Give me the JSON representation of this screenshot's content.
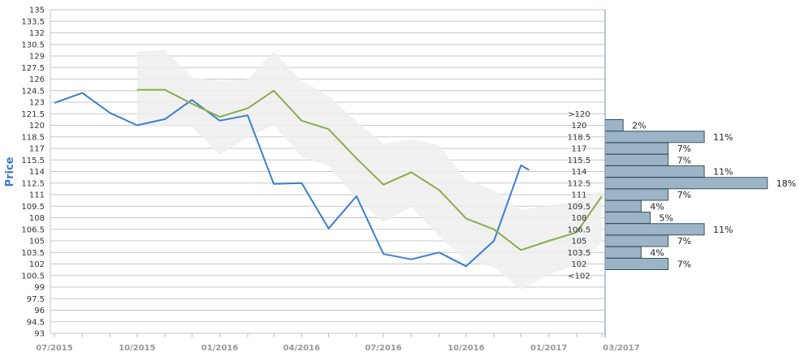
{
  "chart_data": {
    "type": "line",
    "title": "",
    "xlabel": "",
    "ylabel": "Price",
    "ylim": [
      93,
      135
    ],
    "y_ticks": [
      "135",
      "133.5",
      "132",
      "130.5",
      "129",
      "127.5",
      "126",
      "124.5",
      "123",
      "121.5",
      "120",
      "118.5",
      "117",
      "115.5",
      "114",
      "112.5",
      "111",
      "109.5",
      "108",
      "106.5",
      "105",
      "103.5",
      "102",
      "100.5",
      "99",
      "97.5",
      "96",
      "94.5",
      "93"
    ],
    "x_ticks": [
      "07/2015",
      "10/2015",
      "01/2016",
      "04/2016",
      "07/2016",
      "10/2016",
      "01/2017",
      "03/2017"
    ],
    "grid": true,
    "legend": "none",
    "colors": {
      "actual": "#3a7fd1",
      "mean": "#8aad4a",
      "band": "#eeeeee",
      "histogram": "#9bb5c6"
    },
    "series": [
      {
        "values": [
          [
            "2015-07-01",
            122.9
          ],
          [
            "2015-08-01",
            124.2
          ],
          [
            "2015-09-01",
            121.6
          ],
          [
            "2015-10-01",
            120.0
          ],
          [
            "2015-11-01",
            120.8
          ],
          [
            "2015-12-01",
            123.3
          ],
          [
            "2016-01-01",
            120.6
          ],
          [
            "2016-02-01",
            121.3
          ],
          [
            "2016-03-01",
            112.4
          ],
          [
            "2016-04-01",
            112.5
          ],
          [
            "2016-05-01",
            106.6
          ],
          [
            "2016-06-01",
            110.8
          ],
          [
            "2016-07-01",
            103.3
          ],
          [
            "2016-08-01",
            102.6
          ],
          [
            "2016-09-01",
            103.5
          ],
          [
            "2016-10-01",
            101.7
          ],
          [
            "2016-11-01",
            105.0
          ],
          [
            "2016-12-01",
            114.8
          ],
          [
            "2016-12-10",
            114.2
          ]
        ]
      },
      {
        "values": [
          [
            "2015-10-01",
            124.6
          ],
          [
            "2015-11-01",
            124.6
          ],
          [
            "2015-12-01",
            122.8
          ],
          [
            "2016-01-01",
            121.1
          ],
          [
            "2016-02-01",
            122.2
          ],
          [
            "2016-03-01",
            124.5
          ],
          [
            "2016-04-01",
            120.6
          ],
          [
            "2016-05-01",
            119.5
          ],
          [
            "2016-06-01",
            115.7
          ],
          [
            "2016-07-01",
            112.3
          ],
          [
            "2016-08-01",
            113.9
          ],
          [
            "2016-09-01",
            111.6
          ],
          [
            "2016-10-01",
            107.9
          ],
          [
            "2016-11-01",
            106.5
          ],
          [
            "2016-12-01",
            103.8
          ],
          [
            "2017-01-01",
            105.0
          ],
          [
            "2017-02-01",
            106.1
          ],
          [
            "2017-03-01",
            110.8
          ]
        ]
      }
    ],
    "band": {
      "dates": [
        "2015-10-01",
        "2015-11-01",
        "2015-12-01",
        "2016-01-01",
        "2016-02-01",
        "2016-03-01",
        "2016-04-01",
        "2016-05-01",
        "2016-06-01",
        "2016-07-01",
        "2016-08-01",
        "2016-09-01",
        "2016-10-01",
        "2016-11-01",
        "2016-12-01",
        "2017-01-01",
        "2017-02-01",
        "2017-03-01"
      ],
      "upper": [
        129.5,
        129.8,
        126.2,
        125.8,
        126.0,
        129.6,
        125.8,
        123.8,
        120.5,
        117.6,
        118.2,
        117.4,
        112.9,
        111.6,
        109.0,
        109.6,
        110.2,
        111.6
      ],
      "lower": [
        119.8,
        119.8,
        119.8,
        116.2,
        118.4,
        120.0,
        115.9,
        114.7,
        110.5,
        107.4,
        109.4,
        105.6,
        102.4,
        101.6,
        98.7,
        100.6,
        101.9,
        104.8
      ]
    },
    "histogram": {
      "labels": [
        ">120",
        "120",
        "118.5",
        "117",
        "115.5",
        "114",
        "112.5",
        "111",
        "109.5",
        "108",
        "106.5",
        "105",
        "103.5",
        "102",
        "<102"
      ],
      "bins": [
        {
          "value": 120,
          "percent": 2,
          "label": "2%"
        },
        {
          "value": 118.5,
          "percent": 11,
          "label": "11%"
        },
        {
          "value": 117,
          "percent": 7,
          "label": "7%"
        },
        {
          "value": 115.5,
          "percent": 7,
          "label": "7%"
        },
        {
          "value": 114,
          "percent": 11,
          "label": "11%"
        },
        {
          "value": 112.5,
          "percent": 18,
          "label": "18%"
        },
        {
          "value": 111,
          "percent": 7,
          "label": "7%"
        },
        {
          "value": 109.5,
          "percent": 4,
          "label": "4%"
        },
        {
          "value": 108,
          "percent": 5,
          "label": "5%"
        },
        {
          "value": 106.5,
          "percent": 11,
          "label": "11%"
        },
        {
          "value": 105,
          "percent": 7,
          "label": "7%"
        },
        {
          "value": 103.5,
          "percent": 4,
          "label": "4%"
        },
        {
          "value": 102,
          "percent": 7,
          "label": "7%"
        }
      ]
    }
  }
}
